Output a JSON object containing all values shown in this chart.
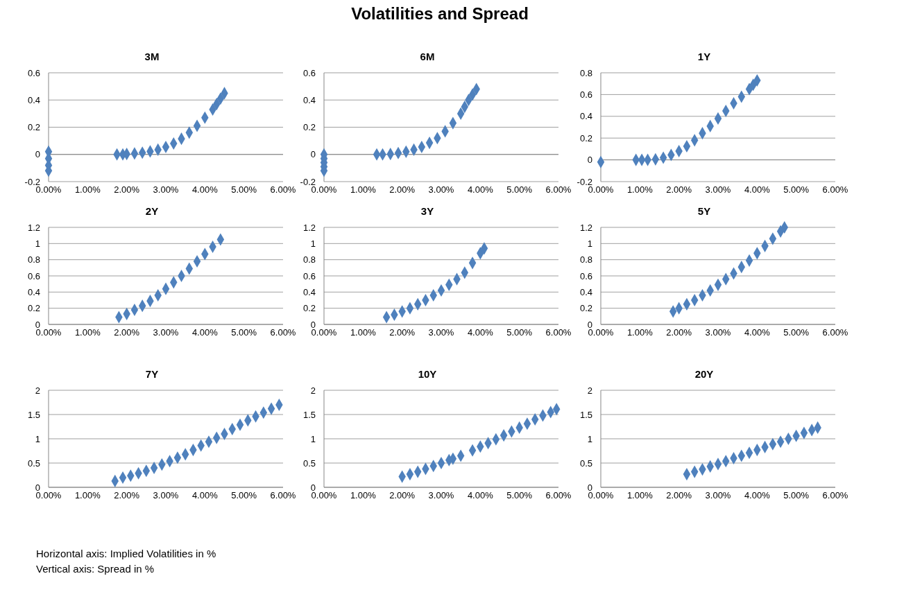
{
  "chart_data": [
    {
      "type": "scatter",
      "title": "3M",
      "annotations": [
        "Volatilities and Spread",
        "Horizontal axis: Implied Volatilities in %",
        "Vertical axis: Spread in %"
      ],
      "marker": "diamond",
      "grid": "y",
      "xlim": [
        0,
        6
      ],
      "xticks": [
        {
          "value": 0,
          "label": "0.00%"
        },
        {
          "value": 1,
          "label": "1.00%"
        },
        {
          "value": 2,
          "label": "2.00%"
        },
        {
          "value": 3,
          "label": "3.00%"
        },
        {
          "value": 4,
          "label": "4.00%"
        },
        {
          "value": 5,
          "label": "5.00%"
        },
        {
          "value": 6,
          "label": "6.00%"
        }
      ],
      "ylim": [
        -0.2,
        0.6
      ],
      "yticks": [
        -0.2,
        0,
        0.2,
        0.4,
        0.6
      ],
      "series": [
        {
          "color": "#4f81bd",
          "x": [
            0,
            0,
            0,
            0,
            1.75,
            1.9,
            2.0,
            2.2,
            2.4,
            2.6,
            2.8,
            3.0,
            3.2,
            3.4,
            3.6,
            3.8,
            4.0,
            4.2,
            4.3,
            4.4,
            4.5
          ],
          "values": [
            0.02,
            -0.03,
            -0.08,
            -0.12,
            0,
            0,
            0.003,
            0.007,
            0.013,
            0.022,
            0.035,
            0.055,
            0.08,
            0.115,
            0.16,
            0.21,
            0.27,
            0.33,
            0.37,
            0.41,
            0.45
          ]
        }
      ]
    },
    {
      "type": "scatter",
      "title": "6M",
      "marker": "diamond",
      "grid": "y",
      "xlim": [
        0,
        6
      ],
      "xticks": [
        {
          "value": 0,
          "label": "0.00%"
        },
        {
          "value": 1,
          "label": "1.00%"
        },
        {
          "value": 2,
          "label": "2.00%"
        },
        {
          "value": 3,
          "label": "3.00%"
        },
        {
          "value": 4,
          "label": "4.00%"
        },
        {
          "value": 5,
          "label": "5.00%"
        },
        {
          "value": 6,
          "label": "6.00%"
        }
      ],
      "ylim": [
        -0.2,
        0.6
      ],
      "yticks": [
        -0.2,
        0,
        0.2,
        0.4,
        0.6
      ],
      "series": [
        {
          "color": "#4f81bd",
          "x": [
            0,
            0,
            0,
            0,
            0,
            1.35,
            1.5,
            1.7,
            1.9,
            2.1,
            2.3,
            2.5,
            2.7,
            2.9,
            3.1,
            3.3,
            3.5,
            3.6,
            3.7,
            3.8,
            3.9
          ],
          "values": [
            0,
            -0.03,
            -0.06,
            -0.09,
            -0.12,
            0,
            0,
            0.003,
            0.01,
            0.02,
            0.035,
            0.055,
            0.085,
            0.12,
            0.17,
            0.23,
            0.3,
            0.35,
            0.4,
            0.44,
            0.48
          ]
        }
      ]
    },
    {
      "type": "scatter",
      "title": "1Y",
      "marker": "diamond",
      "grid": "y",
      "xlim": [
        0,
        6
      ],
      "xticks": [
        {
          "value": 0,
          "label": "0.00%"
        },
        {
          "value": 1,
          "label": "1.00%"
        },
        {
          "value": 2,
          "label": "2.00%"
        },
        {
          "value": 3,
          "label": "3.00%"
        },
        {
          "value": 4,
          "label": "4.00%"
        },
        {
          "value": 5,
          "label": "5.00%"
        },
        {
          "value": 6,
          "label": "6.00%"
        }
      ],
      "ylim": [
        -0.2,
        0.8
      ],
      "yticks": [
        -0.2,
        0,
        0.2,
        0.4,
        0.6,
        0.8
      ],
      "series": [
        {
          "color": "#4f81bd",
          "x": [
            0,
            0.9,
            1.05,
            1.2,
            1.4,
            1.6,
            1.8,
            2.0,
            2.2,
            2.4,
            2.6,
            2.8,
            3.0,
            3.2,
            3.4,
            3.6,
            3.8,
            3.9,
            4.0
          ],
          "values": [
            -0.02,
            0,
            0,
            0,
            0.005,
            0.02,
            0.045,
            0.08,
            0.125,
            0.18,
            0.245,
            0.31,
            0.38,
            0.45,
            0.52,
            0.58,
            0.65,
            0.69,
            0.73
          ]
        }
      ]
    },
    {
      "type": "scatter",
      "title": "2Y",
      "marker": "diamond",
      "grid": "y",
      "xlim": [
        0,
        6
      ],
      "xticks": [
        {
          "value": 0,
          "label": "0.00%"
        },
        {
          "value": 1,
          "label": "1.00%"
        },
        {
          "value": 2,
          "label": "2.00%"
        },
        {
          "value": 3,
          "label": "3.00%"
        },
        {
          "value": 4,
          "label": "4.00%"
        },
        {
          "value": 5,
          "label": "5.00%"
        },
        {
          "value": 6,
          "label": "6.00%"
        }
      ],
      "ylim": [
        0,
        1.2
      ],
      "yticks": [
        0,
        0.2,
        0.4,
        0.6,
        0.8,
        1,
        1.2
      ],
      "series": [
        {
          "color": "#4f81bd",
          "x": [
            1.8,
            2.0,
            2.2,
            2.4,
            2.6,
            2.8,
            3.0,
            3.2,
            3.4,
            3.6,
            3.8,
            4.0,
            4.2,
            4.4
          ],
          "values": [
            0.09,
            0.13,
            0.18,
            0.23,
            0.29,
            0.36,
            0.44,
            0.52,
            0.6,
            0.69,
            0.78,
            0.87,
            0.96,
            1.05
          ]
        }
      ]
    },
    {
      "type": "scatter",
      "title": "3Y",
      "marker": "diamond",
      "grid": "y",
      "xlim": [
        0,
        6
      ],
      "xticks": [
        {
          "value": 0,
          "label": "0.00%"
        },
        {
          "value": 1,
          "label": "1.00%"
        },
        {
          "value": 2,
          "label": "2.00%"
        },
        {
          "value": 3,
          "label": "3.00%"
        },
        {
          "value": 4,
          "label": "4.00%"
        },
        {
          "value": 5,
          "label": "5.00%"
        },
        {
          "value": 6,
          "label": "6.00%"
        }
      ],
      "ylim": [
        0,
        1.2
      ],
      "yticks": [
        0,
        0.2,
        0.4,
        0.6,
        0.8,
        1,
        1.2
      ],
      "series": [
        {
          "color": "#4f81bd",
          "x": [
            1.6,
            1.8,
            2.0,
            2.2,
            2.4,
            2.6,
            2.8,
            3.0,
            3.2,
            3.4,
            3.6,
            3.8,
            4.0,
            4.1
          ],
          "values": [
            0.09,
            0.12,
            0.16,
            0.2,
            0.25,
            0.3,
            0.36,
            0.42,
            0.49,
            0.56,
            0.64,
            0.76,
            0.88,
            0.94
          ]
        }
      ]
    },
    {
      "type": "scatter",
      "title": "5Y",
      "marker": "diamond",
      "grid": "y",
      "xlim": [
        0,
        6
      ],
      "xticks": [
        {
          "value": 0,
          "label": "0.00%"
        },
        {
          "value": 1,
          "label": "1.00%"
        },
        {
          "value": 2,
          "label": "2.00%"
        },
        {
          "value": 3,
          "label": "3.00%"
        },
        {
          "value": 4,
          "label": "4.00%"
        },
        {
          "value": 5,
          "label": "5.00%"
        },
        {
          "value": 6,
          "label": "6.00%"
        }
      ],
      "ylim": [
        0,
        1.2
      ],
      "yticks": [
        0,
        0.2,
        0.4,
        0.6,
        0.8,
        1,
        1.2
      ],
      "series": [
        {
          "color": "#4f81bd",
          "x": [
            1.85,
            2.0,
            2.2,
            2.4,
            2.6,
            2.8,
            3.0,
            3.2,
            3.4,
            3.6,
            3.8,
            4.0,
            4.2,
            4.4,
            4.6,
            4.7
          ],
          "values": [
            0.16,
            0.2,
            0.25,
            0.3,
            0.36,
            0.42,
            0.49,
            0.56,
            0.63,
            0.71,
            0.79,
            0.88,
            0.97,
            1.06,
            1.15,
            1.2
          ]
        }
      ]
    },
    {
      "type": "scatter",
      "title": "7Y",
      "marker": "diamond",
      "grid": "y",
      "xlim": [
        0,
        6
      ],
      "xticks": [
        {
          "value": 0,
          "label": "0.00%"
        },
        {
          "value": 1,
          "label": "1.00%"
        },
        {
          "value": 2,
          "label": "2.00%"
        },
        {
          "value": 3,
          "label": "3.00%"
        },
        {
          "value": 4,
          "label": "4.00%"
        },
        {
          "value": 5,
          "label": "5.00%"
        },
        {
          "value": 6,
          "label": "6.00%"
        }
      ],
      "ylim": [
        0,
        2
      ],
      "yticks": [
        0,
        0.5,
        1,
        1.5,
        2
      ],
      "series": [
        {
          "color": "#4f81bd",
          "x": [
            1.7,
            1.9,
            2.1,
            2.3,
            2.5,
            2.7,
            2.9,
            3.1,
            3.3,
            3.5,
            3.7,
            3.9,
            4.1,
            4.3,
            4.5,
            4.7,
            4.9,
            5.1,
            5.3,
            5.5,
            5.7,
            5.9
          ],
          "values": [
            0.13,
            0.2,
            0.24,
            0.29,
            0.34,
            0.4,
            0.47,
            0.54,
            0.61,
            0.68,
            0.77,
            0.86,
            0.94,
            1.02,
            1.1,
            1.2,
            1.29,
            1.38,
            1.46,
            1.54,
            1.62,
            1.7
          ]
        }
      ]
    },
    {
      "type": "scatter",
      "title": "10Y",
      "marker": "diamond",
      "grid": "y",
      "xlim": [
        0,
        6
      ],
      "xticks": [
        {
          "value": 0,
          "label": "0.00%"
        },
        {
          "value": 1,
          "label": "1.00%"
        },
        {
          "value": 2,
          "label": "2.00%"
        },
        {
          "value": 3,
          "label": "3.00%"
        },
        {
          "value": 4,
          "label": "4.00%"
        },
        {
          "value": 5,
          "label": "5.00%"
        },
        {
          "value": 6,
          "label": "6.00%"
        }
      ],
      "ylim": [
        0,
        2
      ],
      "yticks": [
        0,
        0.5,
        1,
        1.5,
        2
      ],
      "series": [
        {
          "color": "#4f81bd",
          "x": [
            2.0,
            2.2,
            2.4,
            2.6,
            2.8,
            3.0,
            3.2,
            3.3,
            3.5,
            3.8,
            4.0,
            4.2,
            4.4,
            4.6,
            4.8,
            5.0,
            5.2,
            5.4,
            5.6,
            5.8,
            5.95
          ],
          "values": [
            0.22,
            0.27,
            0.32,
            0.38,
            0.44,
            0.5,
            0.56,
            0.59,
            0.65,
            0.76,
            0.84,
            0.91,
            0.99,
            1.07,
            1.15,
            1.23,
            1.31,
            1.4,
            1.48,
            1.55,
            1.61
          ]
        }
      ]
    },
    {
      "type": "scatter",
      "title": "20Y",
      "marker": "diamond",
      "grid": "y",
      "xlim": [
        0,
        6
      ],
      "xticks": [
        {
          "value": 0,
          "label": "0.00%"
        },
        {
          "value": 1,
          "label": "1.00%"
        },
        {
          "value": 2,
          "label": "2.00%"
        },
        {
          "value": 3,
          "label": "3.00%"
        },
        {
          "value": 4,
          "label": "4.00%"
        },
        {
          "value": 5,
          "label": "5.00%"
        },
        {
          "value": 6,
          "label": "6.00%"
        }
      ],
      "ylim": [
        0,
        2
      ],
      "yticks": [
        0,
        0.5,
        1,
        1.5,
        2
      ],
      "series": [
        {
          "color": "#4f81bd",
          "x": [
            2.2,
            2.4,
            2.6,
            2.8,
            3.0,
            3.2,
            3.4,
            3.6,
            3.8,
            4.0,
            4.2,
            4.4,
            4.6,
            4.8,
            5.0,
            5.2,
            5.4,
            5.55
          ],
          "values": [
            0.27,
            0.32,
            0.37,
            0.43,
            0.48,
            0.54,
            0.6,
            0.65,
            0.71,
            0.77,
            0.83,
            0.89,
            0.94,
            1.0,
            1.06,
            1.12,
            1.18,
            1.23
          ]
        }
      ]
    }
  ]
}
